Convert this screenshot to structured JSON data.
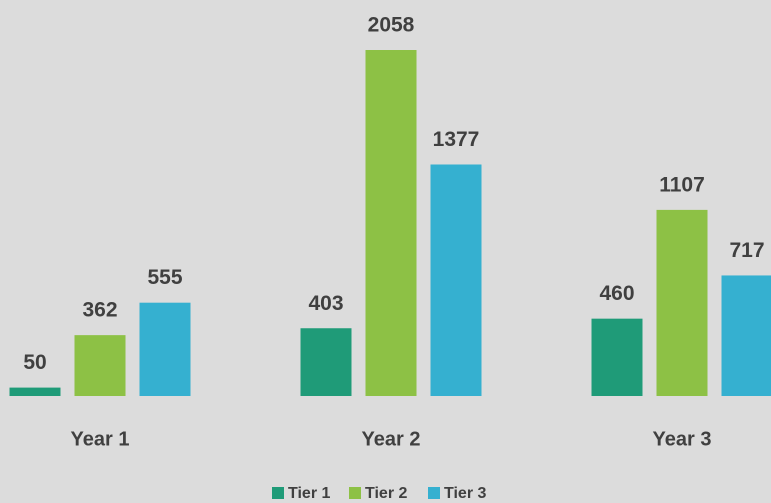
{
  "chart_data": {
    "type": "bar",
    "categories": [
      "Year 1",
      "Year 2",
      "Year 3"
    ],
    "series": [
      {
        "name": "Tier 1",
        "color": "#1f9b78",
        "values": [
          50,
          403,
          460
        ]
      },
      {
        "name": "Tier 2",
        "color": "#8dc145",
        "values": [
          362,
          2058,
          1107
        ]
      },
      {
        "name": "Tier 3",
        "color": "#35b0d0",
        "values": [
          555,
          1377,
          717
        ]
      }
    ],
    "legend": "bottom"
  }
}
